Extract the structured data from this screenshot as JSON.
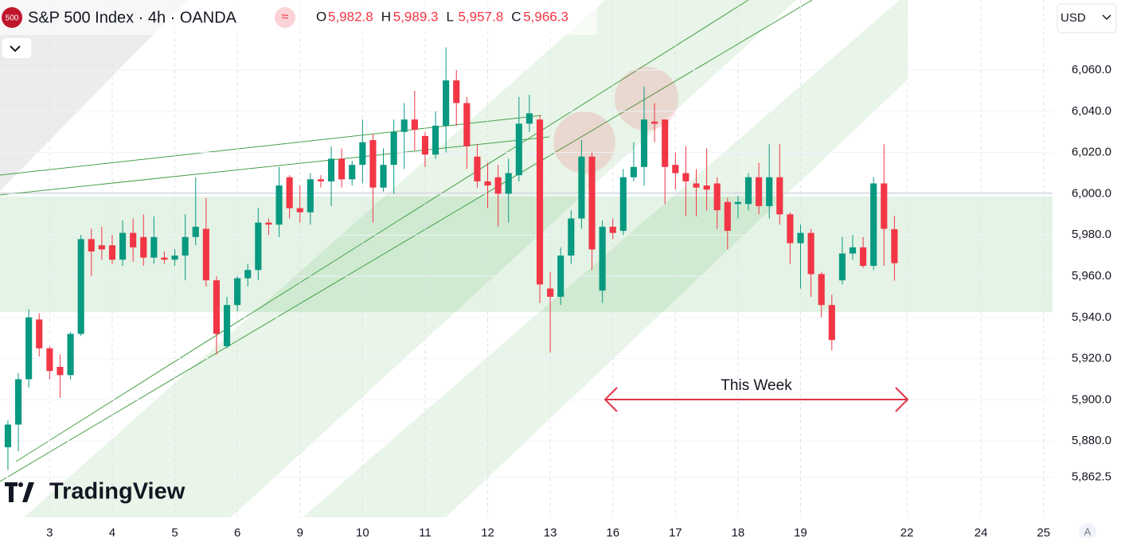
{
  "header": {
    "badge": "500",
    "legend": [
      {
        "key": "O",
        "value": "5,982.8"
      },
      {
        "key": "H",
        "value": "5,989.3"
      },
      {
        "key": "L",
        "value": "5,957.8"
      },
      {
        "key": "C",
        "value": "5,966.3"
      }
    ],
    "currency": "USD",
    "scale_mode": "A"
  },
  "watermark": "TradingView",
  "chart_data": {
    "type": "candlestick",
    "title": "S&P 500 Index · 4h · OANDA",
    "open": [
      5877,
      5888,
      5910,
      5939,
      5925,
      5916,
      5912,
      5932,
      5978,
      5975,
      5975,
      5968,
      5981,
      5979,
      5969,
      5969,
      5968,
      5970,
      5979,
      5983,
      5958,
      5926,
      5946,
      5959,
      5963,
      5986,
      5985,
      6008,
      5993,
      5991,
      6007,
      6006,
      6017,
      6007,
      6014,
      6026,
      6003,
      6014,
      6030,
      6036,
      6028,
      6019,
      6033,
      6055,
      6044,
      6018,
      6006,
      6008,
      6000,
      6009,
      6034,
      6036,
      5954,
      5950,
      5970,
      5988,
      6018,
      5953,
      5984,
      5982,
      6008,
      6013,
      6035,
      6036,
      6014,
      6010,
      6005,
      6004,
      6005,
      5996,
      5995,
      5995,
      6008,
      5994,
      6008,
      5990,
      5976,
      5981,
      5961,
      5946,
      5958,
      5971,
      5974,
      5965,
      6005,
      5982.8
    ],
    "high": [
      5890,
      5913,
      5944,
      5942,
      5926,
      5922,
      5933,
      5980,
      5983,
      5984,
      5980,
      5987,
      5988,
      5990,
      5989,
      5972,
      5973,
      5990,
      6008,
      5998,
      5960,
      5950,
      5960,
      5966,
      5993,
      5988,
      6013,
      6009,
      6004,
      6010,
      6009,
      6023,
      6022,
      6016,
      6036,
      6029,
      6022,
      6036,
      6044,
      6050,
      6030,
      6040,
      6071,
      6060,
      6047,
      6024,
      6015,
      6014,
      6017,
      6047,
      6048,
      6038,
      5962,
      5974,
      5992,
      6026,
      6020,
      5987,
      5988,
      6012,
      6025,
      6052,
      6044,
      6036,
      6020,
      6023,
      6012,
      6022,
      6008,
      5998,
      5999,
      6010,
      6015,
      6024,
      6024,
      5991,
      5985,
      5983,
      5962,
      5951,
      5979,
      5980,
      5979,
      6008,
      6024,
      5989.3
    ],
    "low": [
      5866,
      5875,
      5906,
      5921,
      5910,
      5901,
      5910,
      5931,
      5960,
      5968,
      5966,
      5965,
      5967,
      5965,
      5966,
      5966,
      5965,
      5958,
      5975,
      5955,
      5922,
      5925,
      5943,
      5955,
      5958,
      5980,
      5979,
      5988,
      5986,
      5985,
      6003,
      5994,
      6003,
      6004,
      6005,
      5986,
      6001,
      6000,
      6012,
      6021,
      6013,
      6017,
      6020,
      6033,
      6012,
      6003,
      5993,
      5984,
      5986,
      6006,
      6030,
      5947,
      5923,
      5946,
      5966,
      5983,
      5963,
      5947,
      5978,
      5980,
      6006,
      6004,
      6025,
      5995,
      6002,
      5989,
      5989,
      5992,
      5983,
      5973,
      5988,
      5992,
      5990,
      5988,
      5985,
      5966,
      5954,
      5950,
      5940,
      5924,
      5956,
      5968,
      5964,
      5963,
      5965,
      5957.8
    ],
    "close": [
      5888,
      5910,
      5940,
      5925,
      5914,
      5912,
      5932,
      5978,
      5972,
      5973,
      5968,
      5981,
      5974,
      5969,
      5979,
      5968,
      5970,
      5979,
      5984,
      5958,
      5932,
      5946,
      5959,
      5963,
      5986,
      5985,
      6004,
      5993,
      5991,
      6007,
      6006,
      6017,
      6007,
      6014,
      6025,
      6003,
      6014,
      6030,
      6036,
      6031,
      6019,
      6033,
      6055,
      6044,
      6023,
      6006,
      6004,
      6000,
      6010,
      6034,
      6039,
      5956,
      5950,
      5970,
      5988,
      6018,
      5973,
      5984,
      5981,
      6008,
      6013,
      6036,
      6034,
      6013,
      6010,
      6006,
      6003,
      6002,
      5992,
      5982,
      5996,
      6008,
      5994,
      6008,
      5990,
      5976,
      5981,
      5961,
      5946,
      5929,
      5971,
      5974,
      5965,
      6005,
      5983,
      5966.3
    ],
    "up_color": "#089981",
    "down_color": "#f23645",
    "xlim": [
      -0.76,
      100.16
    ],
    "xticks": [
      {
        "value": 4,
        "label": "3"
      },
      {
        "value": 10,
        "label": "4"
      },
      {
        "value": 16,
        "label": "5"
      },
      {
        "value": 22,
        "label": "6"
      },
      {
        "value": 28,
        "label": "9"
      },
      {
        "value": 34,
        "label": "10"
      },
      {
        "value": 40,
        "label": "11"
      },
      {
        "value": 46,
        "label": "12"
      },
      {
        "value": 52,
        "label": "13"
      },
      {
        "value": 58,
        "label": "16"
      },
      {
        "value": 64,
        "label": "17"
      },
      {
        "value": 70,
        "label": "18"
      },
      {
        "value": 76,
        "label": "19"
      },
      {
        "value": 86.2,
        "label": "22"
      },
      {
        "value": 93.3,
        "label": "24"
      },
      {
        "value": 99.3,
        "label": "25"
      }
    ],
    "ylim": [
      5843,
      6094
    ],
    "yticks": [
      {
        "value": 6060,
        "label": "6,060.0"
      },
      {
        "value": 6040,
        "label": "6,040.0"
      },
      {
        "value": 6020,
        "label": "6,020.0"
      },
      {
        "value": 6000,
        "label": "6,000.0"
      },
      {
        "value": 5980,
        "label": "5,980.0"
      },
      {
        "value": 5960,
        "label": "5,960.0"
      },
      {
        "value": 5940,
        "label": "5,940.0"
      },
      {
        "value": 5920,
        "label": "5,920.0"
      },
      {
        "value": 5900,
        "label": "5,900.0"
      },
      {
        "value": 5880,
        "label": "5,880.0"
      },
      {
        "value": 5862.5,
        "label": "5,862.5"
      }
    ],
    "grid": true,
    "annotation": "This Week"
  }
}
